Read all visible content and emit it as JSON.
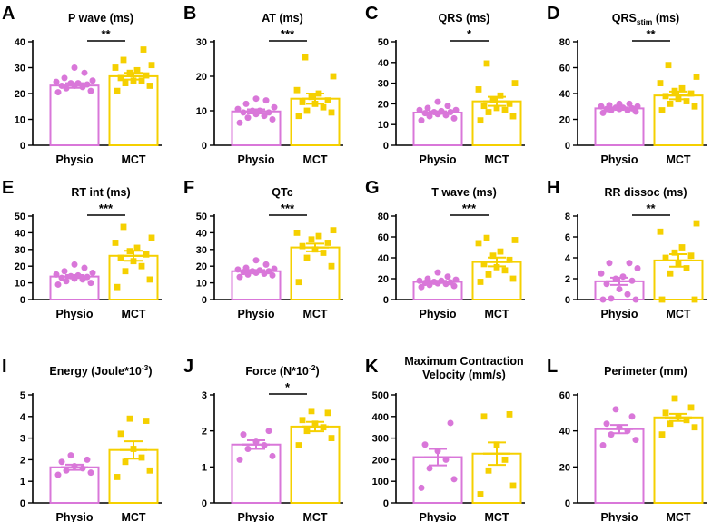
{
  "colors": {
    "physio": "#d977d9",
    "mct": "#f5d000",
    "axis": "#000000"
  },
  "chart_data": [
    {
      "letter": "A",
      "type": "bar",
      "title": "P wave (ms)",
      "categories": [
        "Physio",
        "MCT"
      ],
      "ylim": [
        0,
        40
      ],
      "yticks": [
        0,
        10,
        20,
        30,
        40
      ],
      "significance": "**",
      "series": [
        {
          "name": "Physio",
          "mean": 23.1,
          "sem": 0.9,
          "points": [
            20.5,
            21,
            22,
            22.5,
            23,
            23,
            23.5,
            24,
            24,
            24.5,
            25,
            26,
            28,
            30
          ]
        },
        {
          "name": "MCT",
          "mean": 26.7,
          "sem": 1.3,
          "points": [
            21,
            23,
            24,
            25,
            25,
            26,
            27,
            28,
            29,
            30,
            31,
            33,
            37
          ]
        }
      ]
    },
    {
      "letter": "B",
      "type": "bar",
      "title": "AT (ms)",
      "categories": [
        "Physio",
        "MCT"
      ],
      "ylim": [
        0,
        30
      ],
      "yticks": [
        0,
        10,
        20,
        30
      ],
      "significance": "***",
      "series": [
        {
          "name": "Physio",
          "mean": 9.8,
          "sem": 0.6,
          "points": [
            6.5,
            7.5,
            8,
            8.5,
            9,
            9.5,
            9.5,
            10,
            10,
            10.5,
            11,
            12,
            13,
            13.5
          ]
        },
        {
          "name": "MCT",
          "mean": 13.5,
          "sem": 1.5,
          "points": [
            8.5,
            9.5,
            10,
            11,
            12,
            12.5,
            13,
            14,
            15,
            16,
            20,
            25.5
          ]
        }
      ]
    },
    {
      "letter": "C",
      "type": "bar",
      "title": "QRS (ms)",
      "categories": [
        "Physio",
        "MCT"
      ],
      "ylim": [
        0,
        50
      ],
      "yticks": [
        0,
        10,
        20,
        30,
        40,
        50
      ],
      "significance": "*",
      "series": [
        {
          "name": "Physio",
          "mean": 15.8,
          "sem": 0.6,
          "points": [
            12,
            13,
            14,
            14.5,
            15,
            15.5,
            16,
            16,
            16.5,
            17,
            17,
            18,
            19,
            21
          ]
        },
        {
          "name": "MCT",
          "mean": 21.2,
          "sem": 2.2,
          "points": [
            12,
            14,
            16,
            17,
            18,
            19,
            20,
            22,
            24,
            27,
            30,
            39.5
          ]
        }
      ]
    },
    {
      "letter": "D",
      "type": "bar",
      "title": "QRS",
      "title_sub": "stim",
      "title_tail": " (ms)",
      "categories": [
        "Physio",
        "MCT"
      ],
      "ylim": [
        0,
        80
      ],
      "yticks": [
        0,
        20,
        40,
        60,
        80
      ],
      "significance": "**",
      "series": [
        {
          "name": "Physio",
          "mean": 28.5,
          "sem": 0.7,
          "points": [
            25,
            26,
            27,
            27,
            28,
            28,
            28.5,
            29,
            29,
            30,
            30,
            31,
            32,
            32
          ]
        },
        {
          "name": "MCT",
          "mean": 38.5,
          "sem": 3.0,
          "points": [
            27,
            30,
            32,
            34,
            36,
            38,
            40,
            42,
            44,
            48,
            53,
            62
          ]
        }
      ]
    },
    {
      "letter": "E",
      "type": "bar",
      "title": "RT int (ms)",
      "categories": [
        "Physio",
        "MCT"
      ],
      "ylim": [
        0,
        50
      ],
      "yticks": [
        0,
        10,
        20,
        30,
        40,
        50
      ],
      "significance": "***",
      "series": [
        {
          "name": "Physio",
          "mean": 13.8,
          "sem": 0.9,
          "points": [
            9,
            10,
            11,
            12,
            12.5,
            13,
            13.5,
            14,
            14.5,
            15,
            16,
            17,
            19,
            21
          ]
        },
        {
          "name": "MCT",
          "mean": 26.2,
          "sem": 3.0,
          "points": [
            7.5,
            12,
            17,
            20,
            23,
            25,
            27,
            29,
            31,
            34,
            37,
            43.5
          ]
        }
      ]
    },
    {
      "letter": "F",
      "type": "bar",
      "title": "QTc",
      "categories": [
        "Physio",
        "MCT"
      ],
      "ylim": [
        0,
        50
      ],
      "yticks": [
        0,
        10,
        20,
        30,
        40,
        50
      ],
      "significance": "***",
      "series": [
        {
          "name": "Physio",
          "mean": 17.0,
          "sem": 0.7,
          "points": [
            13.5,
            14.5,
            15,
            15.5,
            16,
            16.5,
            17,
            17,
            17.5,
            18,
            18.5,
            19,
            21,
            23.5
          ]
        },
        {
          "name": "MCT",
          "mean": 31.2,
          "sem": 2.3,
          "points": [
            10.5,
            20,
            25,
            28,
            30,
            32,
            34,
            36,
            38,
            40,
            41.5
          ]
        }
      ]
    },
    {
      "letter": "G",
      "type": "bar",
      "title": "T wave (ms)",
      "categories": [
        "Physio",
        "MCT"
      ],
      "ylim": [
        0,
        80
      ],
      "yticks": [
        0,
        20,
        40,
        60,
        80
      ],
      "significance": "***",
      "series": [
        {
          "name": "Physio",
          "mean": 17.0,
          "sem": 1.0,
          "points": [
            12,
            13,
            14,
            15,
            15.5,
            16,
            16.5,
            17,
            18,
            18,
            19,
            20,
            22,
            26
          ]
        },
        {
          "name": "MCT",
          "mean": 36.0,
          "sem": 4.2,
          "points": [
            17,
            20,
            24,
            28,
            31,
            34,
            38,
            42,
            46,
            54,
            57,
            59
          ]
        }
      ]
    },
    {
      "letter": "H",
      "type": "bar",
      "title": "RR dissoc (ms)",
      "categories": [
        "Physio",
        "MCT"
      ],
      "ylim": [
        0,
        8
      ],
      "yticks": [
        0,
        2,
        4,
        6,
        8
      ],
      "significance": "**",
      "series": [
        {
          "name": "Physio",
          "mean": 1.75,
          "sem": 0.35,
          "points": [
            0,
            0,
            0.1,
            0.5,
            1,
            1.5,
            1.8,
            2,
            2.2,
            2.5,
            3,
            3.5,
            3.5
          ]
        },
        {
          "name": "MCT",
          "mean": 3.75,
          "sem": 0.6,
          "points": [
            0,
            0,
            2.5,
            3,
            3.5,
            4,
            4.2,
            4.5,
            5,
            6.5,
            7.3
          ]
        }
      ]
    },
    {
      "letter": "I",
      "type": "bar",
      "title": "Energy (Joule*10",
      "title_sup": "-3",
      "title_tail": ")",
      "categories": [
        "Physio",
        "MCT"
      ],
      "ylim": [
        0,
        5
      ],
      "yticks": [
        0,
        1,
        2,
        3,
        4,
        5
      ],
      "significance": "",
      "series": [
        {
          "name": "Physio",
          "mean": 1.65,
          "sem": 0.12,
          "points": [
            1.3,
            1.4,
            1.5,
            1.6,
            1.7,
            1.9,
            2.0,
            2.2
          ]
        },
        {
          "name": "MCT",
          "mean": 2.45,
          "sem": 0.4,
          "points": [
            1.2,
            1.5,
            1.9,
            2.1,
            2.5,
            3.2,
            3.8,
            3.9
          ]
        }
      ]
    },
    {
      "letter": "J",
      "type": "bar",
      "title": "Force (N*10",
      "title_sup": "-2",
      "title_tail": ")",
      "categories": [
        "Physio",
        "MCT"
      ],
      "ylim": [
        0,
        3
      ],
      "yticks": [
        0,
        1,
        2,
        3
      ],
      "significance": "*",
      "series": [
        {
          "name": "Physio",
          "mean": 1.62,
          "sem": 0.12,
          "points": [
            1.2,
            1.3,
            1.5,
            1.6,
            1.7,
            1.9,
            2.0
          ]
        },
        {
          "name": "MCT",
          "mean": 2.12,
          "sem": 0.13,
          "points": [
            1.6,
            1.8,
            2.0,
            2.1,
            2.2,
            2.3,
            2.5,
            2.55
          ]
        }
      ]
    },
    {
      "letter": "K",
      "type": "bar",
      "title": "Maximum Contraction",
      "title_line2": "Velocity (mm/s)",
      "categories": [
        "Physio",
        "MCT"
      ],
      "ylim": [
        0,
        500
      ],
      "yticks": [
        0,
        100,
        200,
        300,
        400,
        500
      ],
      "significance": "",
      "series": [
        {
          "name": "Physio",
          "mean": 212,
          "sem": 38,
          "points": [
            70,
            110,
            160,
            200,
            240,
            270,
            370
          ]
        },
        {
          "name": "MCT",
          "mean": 228,
          "sem": 52,
          "points": [
            40,
            80,
            150,
            200,
            270,
            400,
            410
          ]
        }
      ]
    },
    {
      "letter": "L",
      "type": "bar",
      "title": "Perimeter (mm)",
      "categories": [
        "Physio",
        "MCT"
      ],
      "ylim": [
        0,
        60
      ],
      "yticks": [
        0,
        20,
        40,
        60
      ],
      "significance": "",
      "series": [
        {
          "name": "Physio",
          "mean": 41,
          "sem": 2.3,
          "points": [
            32,
            35,
            38,
            40,
            42,
            44,
            48,
            52
          ]
        },
        {
          "name": "MCT",
          "mean": 47.5,
          "sem": 2.0,
          "points": [
            38,
            42,
            44,
            46,
            48,
            50,
            53,
            58
          ]
        }
      ]
    }
  ]
}
